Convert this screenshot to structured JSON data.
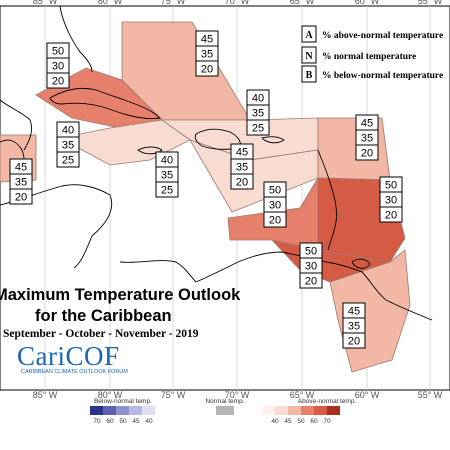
{
  "colors": {
    "above_40": "#f8dcd2",
    "above_45": "#f2b7a5",
    "above_50": "#e6806a",
    "above_60": "#d65b44",
    "above_70": "#a8301f",
    "normal": "#b5b5b5",
    "below_40": "#dfe0f1",
    "below_45": "#b7b9e0",
    "below_50": "#8f92cb",
    "below_60": "#5f63ae",
    "below_70": "#2c3489"
  },
  "longitude_ticks": [
    "85° W",
    "80° W",
    "75° W",
    "70° W",
    "65° W",
    "60° W",
    "55° W"
  ],
  "legend": {
    "above": {
      "letter": "A",
      "text": "% above-normal temperature"
    },
    "normal": {
      "letter": "N",
      "text": "% normal temperature"
    },
    "below": {
      "letter": "B",
      "text": "% below-normal temperature"
    }
  },
  "title": {
    "line1": "Maximum Temperature Outlook",
    "line2": "for the Caribbean",
    "line3": "September - October - November - 2019"
  },
  "logo": {
    "name": "CariCOF",
    "subtitle": "CARIBBEAN CLIMATE OUTLOOK FORUM"
  },
  "colorbar": {
    "below_label": "Below-normal temp.",
    "normal_label": "Normal temp.",
    "above_label": "Above-normal temp.",
    "below_ticks": [
      "70",
      "60",
      "50",
      "45",
      "40"
    ],
    "above_ticks": [
      "40",
      "45",
      "50",
      "60",
      "70"
    ]
  },
  "boxes": [
    {
      "id": "bahamas",
      "a": "45",
      "n": "35",
      "b": "20"
    },
    {
      "id": "cuba",
      "a": "50",
      "n": "30",
      "b": "20"
    },
    {
      "id": "hispaniola-north",
      "a": "40",
      "n": "35",
      "b": "25"
    },
    {
      "id": "belize",
      "a": "40",
      "n": "35",
      "b": "25"
    },
    {
      "id": "central",
      "a": "45",
      "n": "35",
      "b": "20"
    },
    {
      "id": "hispaniola-south",
      "a": "40",
      "n": "35",
      "b": "25"
    },
    {
      "id": "northern-lesser-antilles",
      "a": "45",
      "n": "35",
      "b": "20"
    },
    {
      "id": "honduras",
      "a": "45",
      "n": "35",
      "b": "20"
    },
    {
      "id": "puerto-rico",
      "a": "50",
      "n": "30",
      "b": "20"
    },
    {
      "id": "eastern-caribbean",
      "a": "50",
      "n": "30",
      "b": "20"
    },
    {
      "id": "southern-caribbean",
      "a": "50",
      "n": "30",
      "b": "20"
    },
    {
      "id": "guianas",
      "a": "45",
      "n": "35",
      "b": "20"
    }
  ]
}
